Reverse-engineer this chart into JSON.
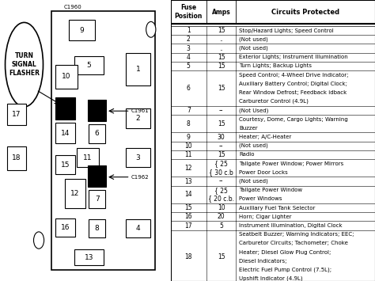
{
  "bg_color": "#ffffff",
  "table_data": [
    [
      "1",
      "15",
      "Stop/Hazard Lights; Speed Control"
    ],
    [
      "2",
      "..",
      "(Not used)"
    ],
    [
      "3",
      "..",
      "(Not used)"
    ],
    [
      "4",
      "15",
      "Exterior Lights; Instrument Illumination"
    ],
    [
      "5",
      "15",
      "Turn Lights; Backup Lights"
    ],
    [
      "6",
      "15",
      "Speed Control; 4-Wheel Drive Indicator;\nAuxiliary Battery Control; Digital Clock;\nRear Window Defrost; Feedback idback\nCarburetor Control (4.9L)"
    ],
    [
      "7",
      "--",
      "(Not Used)"
    ],
    [
      "8",
      "15",
      "Courtesy, Dome, Cargo Lights; Warning\nBuzzer"
    ],
    [
      "9",
      "30",
      "Heater; A/C-Heater"
    ],
    [
      "10",
      "--",
      "(Not used)"
    ],
    [
      "11",
      "15",
      "Radio"
    ],
    [
      "12",
      "{ 25\n{ 30 c.b",
      "Tailgate Power Window; Power Mirrors\nPower Door Locks"
    ],
    [
      "13",
      "--",
      "(Not used)"
    ],
    [
      "14",
      "{ 25\n{ 20 c.b.",
      "Tailgate Power Window\nPower Windows"
    ],
    [
      "15",
      "10",
      "Auxiliary Fuel Tank Selector"
    ],
    [
      "16",
      "20",
      "Horn; Cigar Lighter"
    ],
    [
      "17",
      "5",
      "Instrument Illumination, Digital Clock"
    ],
    [
      "18",
      "15",
      "Seatbelt Buzzer; Warning Indicators; EEC;\nCarburetor Circuits; Tachometer; Choke\nHeater; Diesel Glow Plug Control;\nDiesel Indicators;\nElectric Fuel Pump Control (7.5L);\nUpshift Indicator (4.9L)"
    ]
  ]
}
